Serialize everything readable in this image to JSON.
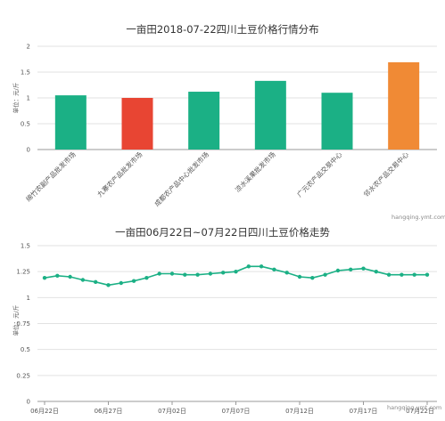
{
  "chart_data": [
    {
      "type": "bar",
      "title": "一亩田2018-07-22四川土豆价格行情分布",
      "ylabel": "单位：元/斤",
      "ylim": [
        0,
        2
      ],
      "yticks": [
        "0",
        "0.5",
        "1",
        "1.5",
        "2"
      ],
      "grid": true,
      "categories": [
        "绵竹农副产品批发市场",
        "九寨农产品批发市场",
        "成都农产品中心批发市场",
        "凉水溪果批发市场",
        "广元农产品交易中心",
        "邻水农产品交易中心"
      ],
      "values": [
        1.05,
        1.0,
        1.12,
        1.33,
        1.1,
        1.69
      ],
      "colors": [
        "#1bb085",
        "#e84533",
        "#1bb085",
        "#1bb085",
        "#1bb085",
        "#f08a35"
      ],
      "watermark": "hangqing.ymt.com"
    },
    {
      "type": "line",
      "title": "一亩田06月22日~07月22日四川土豆价格走势",
      "ylabel": "单位：元/斤",
      "ylim": [
        0,
        1.5
      ],
      "yticks": [
        "0",
        "0.25",
        "0.5",
        "0.75",
        "1",
        "1.25",
        "1.5"
      ],
      "grid": true,
      "x": [
        "06月22日",
        "06月23日",
        "06月24日",
        "06月25日",
        "06月26日",
        "06月27日",
        "06月28日",
        "06月29日",
        "06月30日",
        "07月01日",
        "07月02日",
        "07月03日",
        "07月04日",
        "07月05日",
        "07月06日",
        "07月07日",
        "07月08日",
        "07月09日",
        "07月10日",
        "07月11日",
        "07月12日",
        "07月13日",
        "07月14日",
        "07月15日",
        "07月16日",
        "07月17日",
        "07月18日",
        "07月19日",
        "07月20日",
        "07月21日",
        "07月22日"
      ],
      "xticks": [
        "06月22日",
        "06月27日",
        "07月02日",
        "07月07日",
        "07月12日",
        "07月17日",
        "07月22日"
      ],
      "series": [
        {
          "values": [
            1.19,
            1.21,
            1.2,
            1.17,
            1.15,
            1.12,
            1.14,
            1.16,
            1.19,
            1.23,
            1.23,
            1.22,
            1.22,
            1.23,
            1.24,
            1.25,
            1.3,
            1.3,
            1.27,
            1.24,
            1.2,
            1.19,
            1.22,
            1.26,
            1.27,
            1.28,
            1.25,
            1.22,
            1.22,
            1.22,
            1.22
          ]
        }
      ],
      "color": "#1bb085",
      "watermark": "hangqing.ymt.com"
    }
  ]
}
